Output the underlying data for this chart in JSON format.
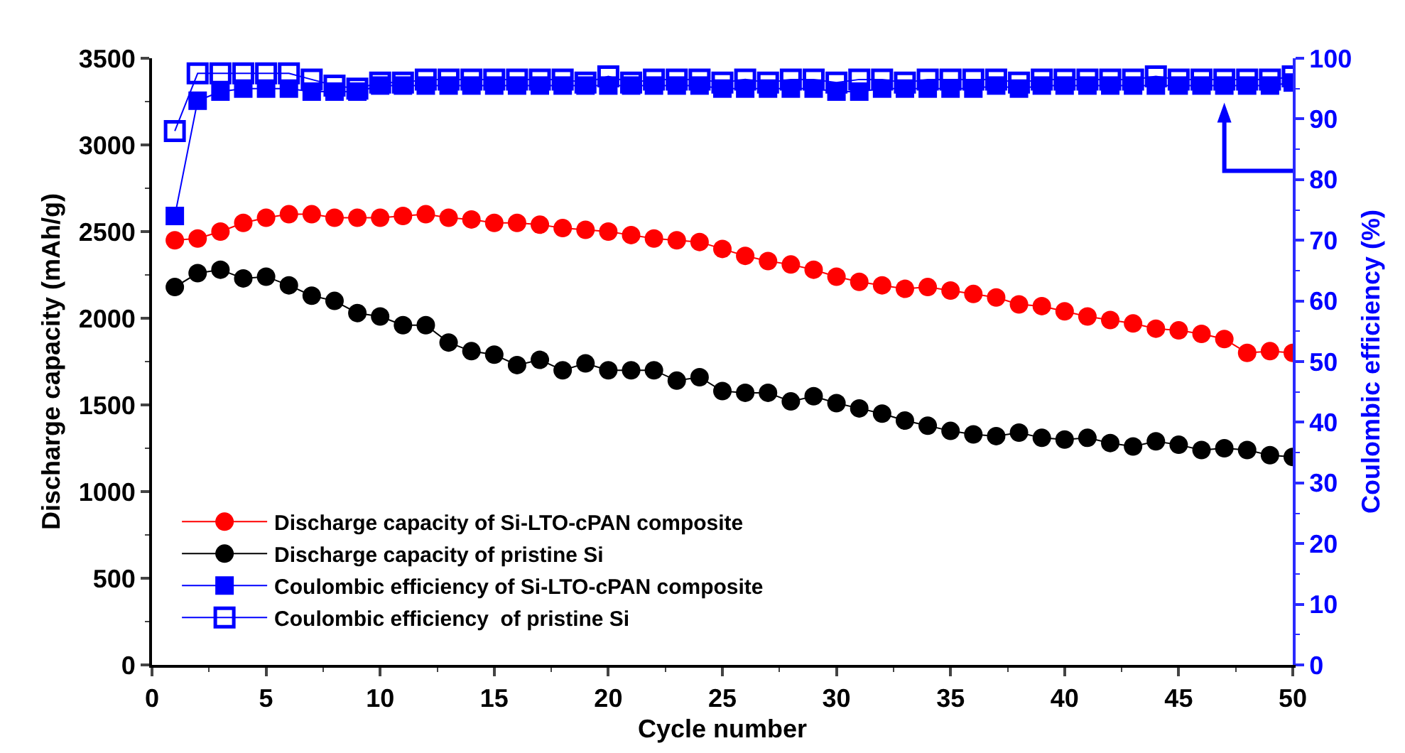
{
  "chart_data": {
    "type": "line",
    "marker": "circle",
    "xlabel": "Cycle number",
    "ylabel": "Discharge capacity (mAh/g)",
    "y2label": "Coulombic efficiency (%)",
    "x": [
      1,
      2,
      3,
      4,
      5,
      6,
      7,
      8,
      9,
      10,
      11,
      12,
      13,
      14,
      15,
      16,
      17,
      18,
      19,
      20,
      21,
      22,
      23,
      24,
      25,
      26,
      27,
      28,
      29,
      30,
      31,
      32,
      33,
      34,
      35,
      36,
      37,
      38,
      39,
      40,
      41,
      42,
      43,
      44,
      45,
      46,
      47,
      48,
      49,
      50
    ],
    "series": [
      {
        "name": "Discharge capacity of Si-LTO-cPAN composite",
        "color": "#ff0000",
        "values": [
          2450,
          2460,
          2500,
          2550,
          2580,
          2600,
          2600,
          2580,
          2580,
          2580,
          2590,
          2600,
          2580,
          2570,
          2550,
          2550,
          2540,
          2520,
          2510,
          2500,
          2480,
          2460,
          2450,
          2440,
          2400,
          2360,
          2330,
          2310,
          2280,
          2240,
          2210,
          2190,
          2170,
          2180,
          2160,
          2140,
          2120,
          2080,
          2070,
          2040,
          2010,
          1990,
          1970,
          1940,
          1930,
          1910,
          1880,
          1800,
          1810,
          1800
        ]
      },
      {
        "name": "Discharge capacity of pristine Si",
        "color": "#000000",
        "values": [
          2180,
          2260,
          2280,
          2230,
          2240,
          2190,
          2130,
          2100,
          2030,
          2010,
          1960,
          1960,
          1860,
          1810,
          1790,
          1730,
          1760,
          1700,
          1740,
          1700,
          1700,
          1700,
          1640,
          1660,
          1580,
          1570,
          1570,
          1520,
          1550,
          1510,
          1480,
          1450,
          1410,
          1380,
          1350,
          1330,
          1320,
          1340,
          1310,
          1300,
          1310,
          1280,
          1260,
          1290,
          1270,
          1240,
          1250,
          1240,
          1210,
          1200
        ]
      },
      {
        "name": "Coulombic efficiency of Si-LTO-cPAN composite",
        "color": "#0000ff",
        "marker": "square",
        "axis": "y2",
        "values": [
          74,
          93,
          94.5,
          95,
          95,
          95,
          94.5,
          94.5,
          94.5,
          95.5,
          95.5,
          95.5,
          95.5,
          95.5,
          95.5,
          95.5,
          95.5,
          95.5,
          95.5,
          95.5,
          95.5,
          95.5,
          95.5,
          95.5,
          95,
          95,
          95,
          95,
          95,
          94.5,
          94.5,
          95,
          95,
          95,
          95,
          95,
          95.5,
          95,
          95.5,
          95.5,
          95.5,
          95.5,
          95.5,
          95.5,
          95.5,
          95.5,
          95.5,
          95.5,
          95.5,
          96
        ]
      },
      {
        "name": "Coulombic efficiency  of pristine Si",
        "color": "#0000ff",
        "marker": "square-open",
        "axis": "y2",
        "values": [
          88,
          97.5,
          97.5,
          97.5,
          97.5,
          97.5,
          96.5,
          95.5,
          95,
          96,
          96,
          96.5,
          96.5,
          96.5,
          96.5,
          96.5,
          96.5,
          96.5,
          96,
          97,
          96,
          96.5,
          96.5,
          96.5,
          96,
          96.5,
          96,
          96.5,
          96.5,
          96,
          96.5,
          96.5,
          96,
          96.5,
          96.5,
          96.5,
          96.5,
          96,
          96.5,
          96.5,
          96.5,
          96.5,
          96.5,
          97,
          96.5,
          96.5,
          96.5,
          96.5,
          96.5,
          97
        ]
      }
    ],
    "xlim": [
      0,
      50
    ],
    "xticks": [
      0,
      5,
      10,
      15,
      20,
      25,
      30,
      35,
      40,
      45,
      50
    ],
    "ylim": [
      0,
      3500
    ],
    "yticks": [
      0,
      500,
      1000,
      1500,
      2000,
      2500,
      3000,
      3500
    ],
    "y2lim": [
      0,
      100
    ],
    "y2ticks": [
      0,
      10,
      20,
      30,
      40,
      50,
      60,
      70,
      80,
      90,
      100
    ],
    "grid": false,
    "legend": "bottom left"
  }
}
